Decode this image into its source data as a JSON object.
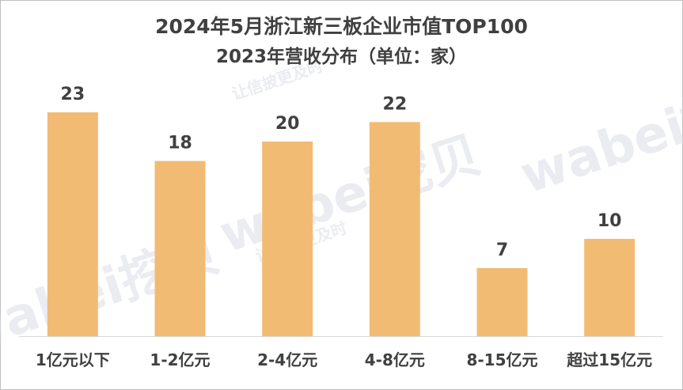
{
  "chart_data": {
    "type": "bar",
    "title": "2024年5月浙江新三板企业市值TOP100",
    "subtitle": "2023年营收分布（单位：家）",
    "categories": [
      "1亿元以下",
      "1-2亿元",
      "2-4亿元",
      "4-8亿元",
      "8-15亿元",
      "超过15亿元"
    ],
    "values": [
      23,
      18,
      20,
      22,
      7,
      10
    ],
    "ylim": [
      0,
      23
    ],
    "grid": false,
    "legend": "none",
    "bar_color": "#f2bb74",
    "label_color": "#404040",
    "axis_color": "#d9d9d9"
  },
  "watermark": {
    "brand": "wabei挖贝",
    "slogan": "让信披更及时"
  }
}
